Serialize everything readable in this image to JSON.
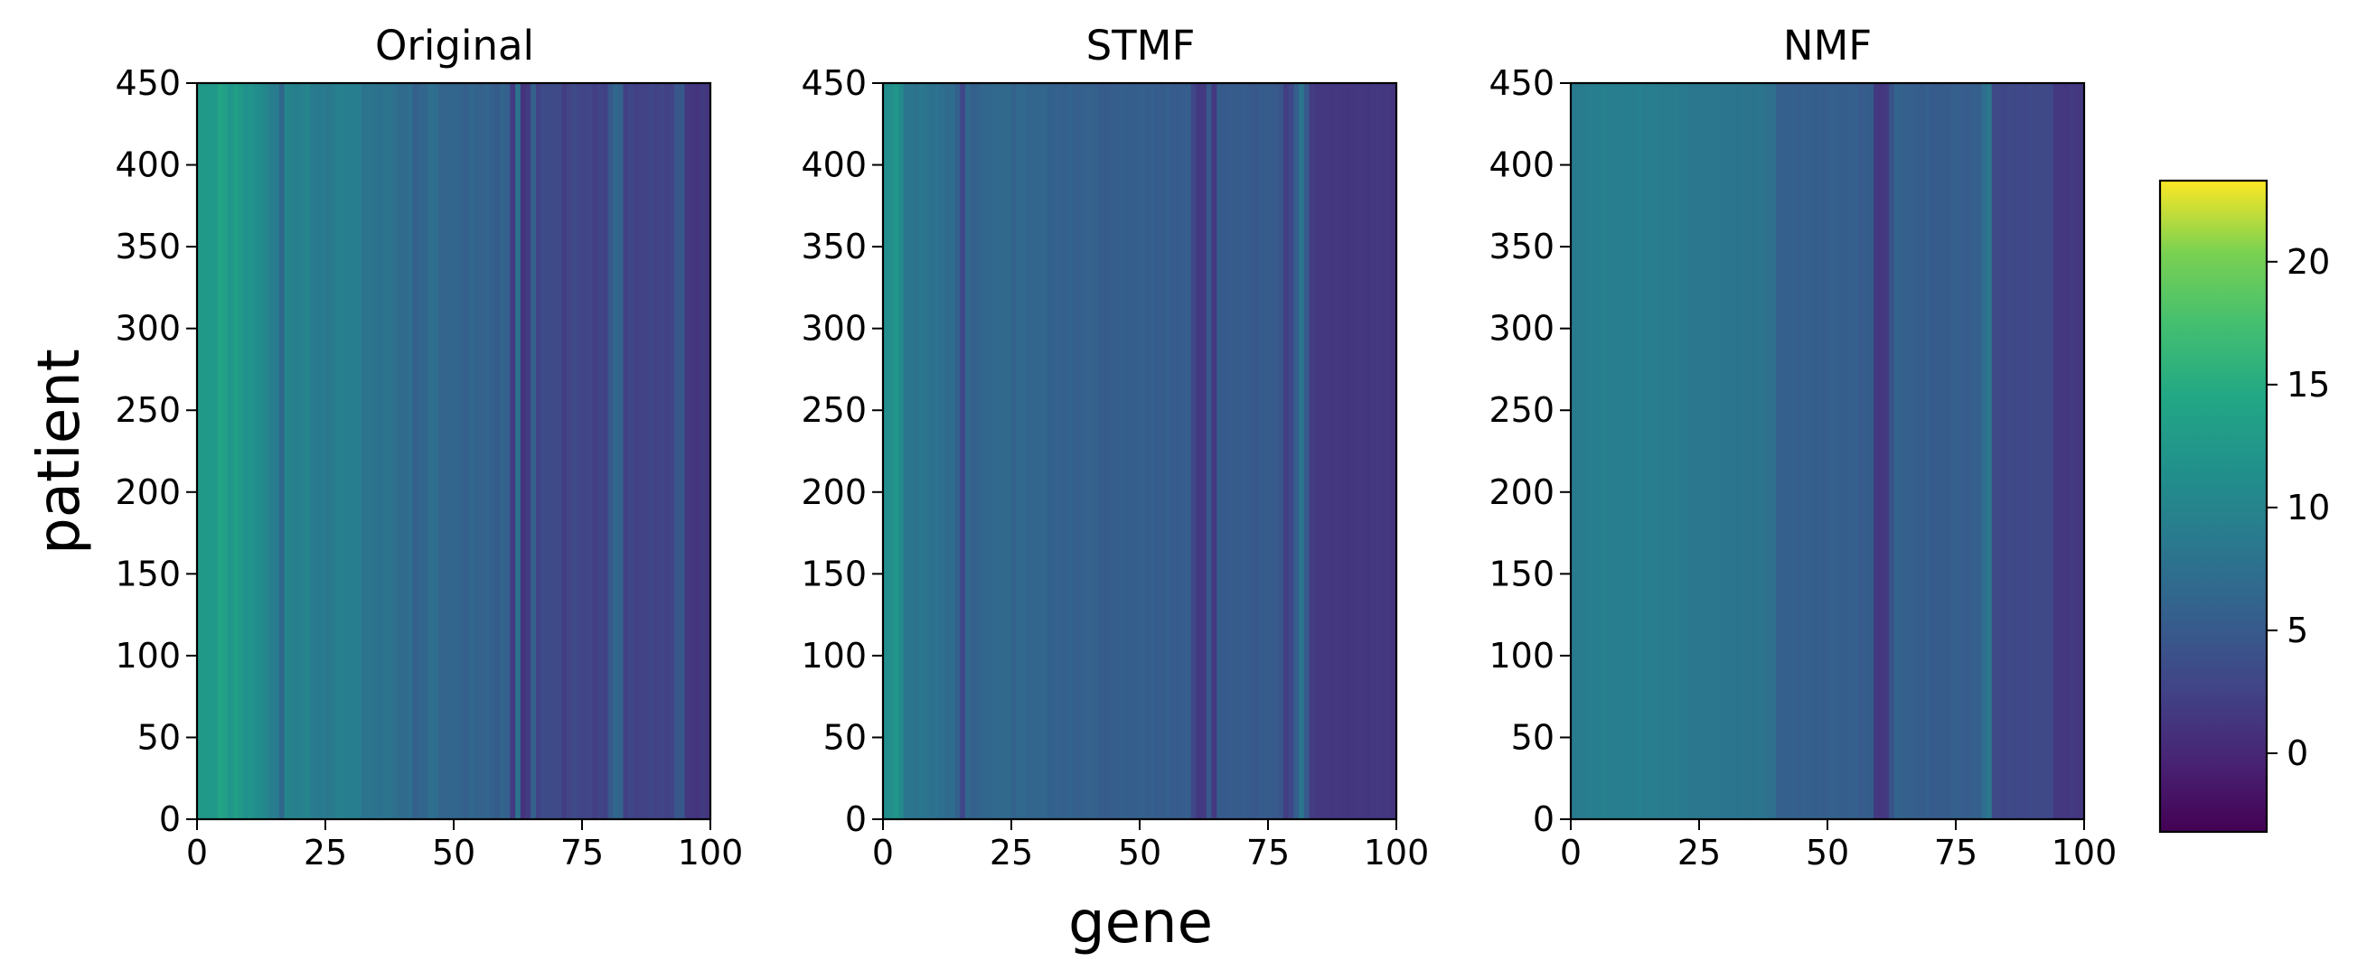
{
  "chart_data": {
    "type": "heatmap",
    "colormap": "viridis",
    "panels": [
      {
        "title": "Original",
        "matrix_shape": {
          "rows": 450,
          "cols": 100
        },
        "xlim": [
          0,
          100
        ],
        "ylim": [
          0,
          450
        ],
        "xticks": [
          0,
          25,
          50,
          75,
          100
        ],
        "yticks": [
          0,
          50,
          100,
          150,
          200,
          250,
          300,
          350,
          400,
          450
        ],
        "column_profile": [
          12.5,
          12.5,
          12.4,
          12.6,
          14.0,
          13.4,
          12.2,
          13.3,
          12.5,
          11.5,
          12.0,
          11.3,
          10.8,
          10.3,
          9.3,
          9.0,
          6.6,
          10.1,
          9.6,
          9.4,
          9.7,
          10.0,
          9.0,
          8.8,
          8.9,
          8.5,
          9.0,
          9.5,
          9.5,
          9.3,
          9.4,
          9.3,
          8.0,
          8.2,
          8.1,
          7.7,
          8.0,
          8.0,
          7.6,
          7.0,
          6.9,
          7.4,
          5.6,
          6.3,
          6.5,
          7.6,
          7.3,
          6.3,
          6.3,
          6.4,
          6.4,
          6.2,
          5.6,
          6.4,
          6.1,
          6.0,
          6.5,
          5.6,
          5.3,
          6.4,
          5.7,
          1.9,
          8.1,
          1.1,
          1.9,
          6.0,
          2.6,
          3.6,
          3.5,
          3.4,
          3.6,
          2.0,
          2.8,
          3.4,
          2.9,
          2.8,
          2.9,
          2.2,
          2.8,
          2.4,
          4.9,
          6.6,
          6.1,
          2.3,
          3.0,
          2.4,
          2.6,
          2.6,
          3.0,
          2.6,
          2.9,
          2.4,
          2.8,
          4.9,
          4.8,
          1.6,
          1.4,
          1.2,
          1.9,
          1.4
        ]
      },
      {
        "title": "STMF",
        "matrix_shape": {
          "rows": 450,
          "cols": 100
        },
        "xlim": [
          0,
          100
        ],
        "ylim": [
          0,
          450
        ],
        "xticks": [
          0,
          25,
          50,
          75,
          100
        ],
        "yticks": [
          0,
          50,
          100,
          150,
          200,
          250,
          300,
          350,
          400,
          450
        ],
        "column_profile": [
          11.0,
          11.3,
          12.2,
          10.8,
          8.3,
          8.4,
          7.9,
          8.5,
          8.0,
          7.8,
          7.9,
          7.4,
          7.1,
          7.3,
          5.8,
          3.0,
          6.6,
          5.8,
          6.1,
          6.5,
          6.6,
          6.8,
          6.7,
          6.8,
          6.8,
          6.1,
          6.7,
          6.7,
          6.2,
          6.4,
          6.3,
          6.4,
          5.8,
          6.1,
          5.9,
          5.8,
          6.2,
          5.6,
          5.6,
          6.0,
          6.0,
          5.6,
          5.3,
          5.3,
          5.4,
          5.5,
          5.6,
          5.5,
          5.5,
          5.5,
          5.7,
          5.5,
          5.6,
          5.4,
          5.3,
          5.6,
          5.2,
          5.2,
          5.4,
          5.5,
          2.9,
          1.7,
          1.8,
          4.9,
          1.8,
          5.3,
          5.1,
          5.2,
          5.3,
          5.2,
          5.4,
          5.1,
          4.9,
          5.2,
          5.3,
          5.3,
          5.0,
          4.6,
          2.1,
          3.1,
          5.6,
          8.3,
          5.2,
          2.0,
          1.6,
          1.6,
          1.6,
          1.5,
          1.6,
          1.4,
          1.3,
          1.4,
          1.6,
          1.5,
          1.3,
          1.6,
          1.6,
          1.5,
          1.4,
          1.2
        ]
      },
      {
        "title": "NMF",
        "matrix_shape": {
          "rows": 450,
          "cols": 100
        },
        "xlim": [
          0,
          100
        ],
        "ylim": [
          0,
          450
        ],
        "xticks": [
          0,
          25,
          50,
          75,
          100
        ],
        "yticks": [
          0,
          50,
          100,
          150,
          200,
          250,
          300,
          350,
          400,
          450
        ],
        "column_profile": [
          8.8,
          8.9,
          9.0,
          9.2,
          9.2,
          9.4,
          9.5,
          9.4,
          9.2,
          9.2,
          9.4,
          9.3,
          9.3,
          9.5,
          9.0,
          9.2,
          9.2,
          9.1,
          9.0,
          9.1,
          8.9,
          8.8,
          8.8,
          8.5,
          8.6,
          8.5,
          8.5,
          8.5,
          8.5,
          8.3,
          8.2,
          8.3,
          8.1,
          8.3,
          8.1,
          8.0,
          8.3,
          8.0,
          7.6,
          7.6,
          5.7,
          5.6,
          5.8,
          5.8,
          5.5,
          5.6,
          5.6,
          5.5,
          5.6,
          5.4,
          5.7,
          5.6,
          5.5,
          5.5,
          5.7,
          5.8,
          5.2,
          5.5,
          5.3,
          1.6,
          1.4,
          1.8,
          4.4,
          6.2,
          6.0,
          5.6,
          5.6,
          5.5,
          5.3,
          5.7,
          5.2,
          5.3,
          5.3,
          5.3,
          5.6,
          5.7,
          5.4,
          5.4,
          5.7,
          5.6,
          7.4,
          8.5,
          3.2,
          3.2,
          3.0,
          3.3,
          3.1,
          3.1,
          3.0,
          3.3,
          3.2,
          3.1,
          3.2,
          3.1,
          1.6,
          1.6,
          1.5,
          1.8,
          1.6,
          1.5
        ]
      }
    ],
    "colorbar": {
      "vmin": -3.2,
      "vmax": 23.3,
      "ticks": [
        0,
        5,
        10,
        15,
        20
      ]
    },
    "xlabel": "gene",
    "ylabel": "patient"
  }
}
